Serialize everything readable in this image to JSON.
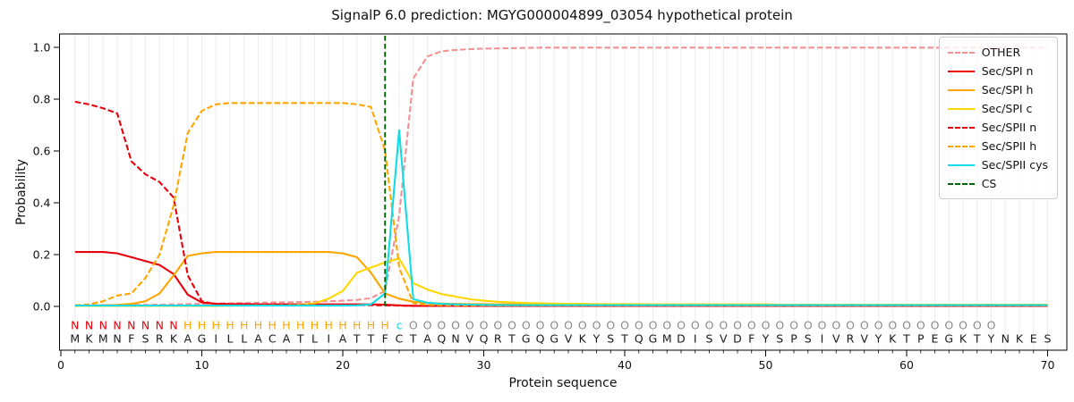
{
  "figure": {
    "title": "SignalP 6.0 prediction: MGYG000004899_03054 hypothetical protein",
    "xlabel": "Protein sequence",
    "ylabel": "Probability",
    "background": "#ffffff",
    "spine_color": "#000000",
    "grid_color": "#ececec",
    "tick_label_color": "#111111"
  },
  "chart_data": {
    "type": "line",
    "title": "SignalP 6.0 prediction: MGYG000004899_03054 hypothetical protein",
    "xlabel": "Protein sequence",
    "ylabel": "Probability",
    "xlim": [
      0,
      71.5
    ],
    "ylim": [
      0.0,
      1.0
    ],
    "x_ticks": [
      0,
      10,
      20,
      30,
      40,
      50,
      60,
      70
    ],
    "y_ticks": [
      0.0,
      0.2,
      0.4,
      0.6,
      0.8,
      1.0
    ],
    "y_tick_labels": [
      "0.0",
      "0.2",
      "0.4",
      "0.6",
      "0.8",
      "1.0"
    ],
    "grid": "vertical-per-residue",
    "legend_position": "upper-right",
    "x_start": 1,
    "series": [
      {
        "name": "OTHER",
        "color": "#f09294",
        "dash": "dashed",
        "values": [
          0.005,
          0.005,
          0.005,
          0.005,
          0.006,
          0.006,
          0.007,
          0.008,
          0.009,
          0.01,
          0.011,
          0.012,
          0.013,
          0.014,
          0.015,
          0.016,
          0.017,
          0.018,
          0.02,
          0.022,
          0.025,
          0.032,
          0.06,
          0.35,
          0.88,
          0.965,
          0.985,
          0.99,
          0.993,
          0.995,
          0.996,
          0.997,
          0.998,
          0.999,
          0.999,
          0.999,
          0.999,
          0.999,
          0.999,
          0.999,
          0.999,
          0.999,
          0.999,
          0.999,
          0.999,
          0.999,
          0.999,
          0.999,
          0.999,
          0.999,
          0.999,
          0.999,
          0.999,
          0.999,
          0.999,
          0.999,
          0.999,
          0.999,
          0.999,
          0.999,
          0.999,
          0.999,
          0.999,
          0.999,
          0.999,
          0.999,
          0.999,
          0.999,
          0.999,
          0.999
        ]
      },
      {
        "name": "Sec/SPI n",
        "color": "#e8000b",
        "dash": "solid",
        "values": [
          0.21,
          0.21,
          0.21,
          0.205,
          0.19,
          0.175,
          0.16,
          0.125,
          0.045,
          0.015,
          0.01,
          0.009,
          0.009,
          0.008,
          0.008,
          0.008,
          0.008,
          0.008,
          0.008,
          0.008,
          0.008,
          0.008,
          0.007,
          0.004,
          0.002,
          0.002,
          0.002,
          0.002,
          0.002,
          0.002,
          0.002,
          0.002,
          0.002,
          0.002,
          0.002,
          0.002,
          0.002,
          0.002,
          0.002,
          0.002,
          0.002,
          0.002,
          0.002,
          0.002,
          0.002,
          0.002,
          0.002,
          0.002,
          0.002,
          0.002,
          0.002,
          0.002,
          0.002,
          0.002,
          0.002,
          0.002,
          0.002,
          0.002,
          0.002,
          0.002,
          0.002,
          0.002,
          0.002,
          0.002,
          0.002,
          0.002,
          0.002,
          0.002,
          0.002,
          0.002
        ]
      },
      {
        "name": "Sec/SPI h",
        "color": "#ffa500",
        "dash": "solid",
        "values": [
          0.002,
          0.003,
          0.004,
          0.006,
          0.01,
          0.02,
          0.05,
          0.12,
          0.195,
          0.205,
          0.21,
          0.21,
          0.21,
          0.21,
          0.21,
          0.21,
          0.21,
          0.21,
          0.21,
          0.205,
          0.19,
          0.13,
          0.05,
          0.03,
          0.018,
          0.013,
          0.011,
          0.01,
          0.009,
          0.009,
          0.008,
          0.008,
          0.008,
          0.008,
          0.008,
          0.008,
          0.008,
          0.008,
          0.008,
          0.008,
          0.007,
          0.007,
          0.007,
          0.007,
          0.007,
          0.007,
          0.007,
          0.007,
          0.007,
          0.007,
          0.006,
          0.006,
          0.006,
          0.006,
          0.006,
          0.006,
          0.006,
          0.006,
          0.006,
          0.006,
          0.006,
          0.006,
          0.006,
          0.006,
          0.006,
          0.006,
          0.006,
          0.006,
          0.006,
          0.006
        ]
      },
      {
        "name": "Sec/SPI c",
        "color": "#ffd700",
        "dash": "solid",
        "values": [
          0.002,
          0.002,
          0.002,
          0.002,
          0.002,
          0.002,
          0.002,
          0.002,
          0.002,
          0.002,
          0.002,
          0.003,
          0.003,
          0.004,
          0.004,
          0.005,
          0.007,
          0.012,
          0.03,
          0.06,
          0.13,
          0.15,
          0.17,
          0.185,
          0.09,
          0.065,
          0.048,
          0.038,
          0.028,
          0.022,
          0.018,
          0.015,
          0.013,
          0.012,
          0.011,
          0.01,
          0.01,
          0.009,
          0.009,
          0.009,
          0.009,
          0.008,
          0.008,
          0.008,
          0.008,
          0.008,
          0.008,
          0.008,
          0.008,
          0.008,
          0.007,
          0.007,
          0.007,
          0.007,
          0.007,
          0.007,
          0.007,
          0.007,
          0.007,
          0.007,
          0.007,
          0.007,
          0.007,
          0.007,
          0.007,
          0.007,
          0.007,
          0.007,
          0.007,
          0.007
        ]
      },
      {
        "name": "Sec/SPII n",
        "color": "#e8000b",
        "dash": "dashed",
        "values": [
          0.79,
          0.78,
          0.765,
          0.745,
          0.56,
          0.51,
          0.48,
          0.42,
          0.12,
          0.02,
          0.008,
          0.006,
          0.005,
          0.005,
          0.005,
          0.005,
          0.005,
          0.005,
          0.005,
          0.005,
          0.005,
          0.005,
          0.004,
          0.003,
          0.002,
          0.002,
          0.002,
          0.002,
          0.002,
          0.002,
          0.002,
          0.002,
          0.002,
          0.002,
          0.002,
          0.002,
          0.002,
          0.002,
          0.002,
          0.002,
          0.002,
          0.002,
          0.002,
          0.002,
          0.002,
          0.002,
          0.002,
          0.002,
          0.002,
          0.002,
          0.002,
          0.002,
          0.002,
          0.002,
          0.002,
          0.002,
          0.002,
          0.002,
          0.002,
          0.002,
          0.002,
          0.002,
          0.002,
          0.002,
          0.002,
          0.002,
          0.002,
          0.002,
          0.002,
          0.002
        ]
      },
      {
        "name": "Sec/SPII h",
        "color": "#ffa500",
        "dash": "dashed",
        "values": [
          0.004,
          0.008,
          0.02,
          0.042,
          0.05,
          0.11,
          0.2,
          0.39,
          0.67,
          0.755,
          0.78,
          0.785,
          0.785,
          0.785,
          0.785,
          0.785,
          0.785,
          0.785,
          0.785,
          0.785,
          0.78,
          0.77,
          0.6,
          0.15,
          0.012,
          0.006,
          0.005,
          0.004,
          0.004,
          0.004,
          0.004,
          0.004,
          0.004,
          0.004,
          0.004,
          0.004,
          0.004,
          0.004,
          0.004,
          0.004,
          0.004,
          0.004,
          0.004,
          0.004,
          0.004,
          0.004,
          0.004,
          0.004,
          0.004,
          0.004,
          0.004,
          0.004,
          0.004,
          0.004,
          0.004,
          0.004,
          0.004,
          0.004,
          0.004,
          0.004,
          0.004,
          0.004,
          0.004,
          0.004,
          0.004,
          0.004,
          0.004,
          0.004,
          0.004,
          0.004
        ]
      },
      {
        "name": "Sec/SPII cys",
        "color": "#11dce6",
        "dash": "solid",
        "values": [
          0.003,
          0.003,
          0.003,
          0.003,
          0.003,
          0.003,
          0.003,
          0.003,
          0.003,
          0.003,
          0.003,
          0.003,
          0.003,
          0.003,
          0.003,
          0.003,
          0.003,
          0.003,
          0.003,
          0.003,
          0.004,
          0.008,
          0.05,
          0.68,
          0.028,
          0.014,
          0.01,
          0.008,
          0.007,
          0.006,
          0.005,
          0.005,
          0.005,
          0.005,
          0.005,
          0.005,
          0.005,
          0.005,
          0.005,
          0.005,
          0.005,
          0.005,
          0.005,
          0.005,
          0.005,
          0.005,
          0.005,
          0.005,
          0.005,
          0.005,
          0.005,
          0.005,
          0.005,
          0.005,
          0.005,
          0.005,
          0.005,
          0.005,
          0.005,
          0.005,
          0.005,
          0.005,
          0.005,
          0.005,
          0.005,
          0.005,
          0.005,
          0.005,
          0.005,
          0.005
        ]
      },
      {
        "name": "CS",
        "color": "#006400",
        "dash": "dashed",
        "type": "vline",
        "x_value": 23
      }
    ],
    "sequence": {
      "residues": "MKMNFSRKAGILLACATLIATTFCTAQNVQRTGQGVKYSTQGMDISVDFYSPSIVRVYKTPEGKTYNKES",
      "region_labels": "NNNNNNNNHHHHHHHHHHHHHHHcOOOOOOOOOOOOOOOOOOOOOOOOOOOOOOOOOOOOOOOOOO",
      "region_colors": {
        "N": "#e8000b",
        "H": "#ffa500",
        "c": "#11dce6",
        "O": "#8a8a8a"
      },
      "residue_color": "#1a1a1a"
    }
  }
}
